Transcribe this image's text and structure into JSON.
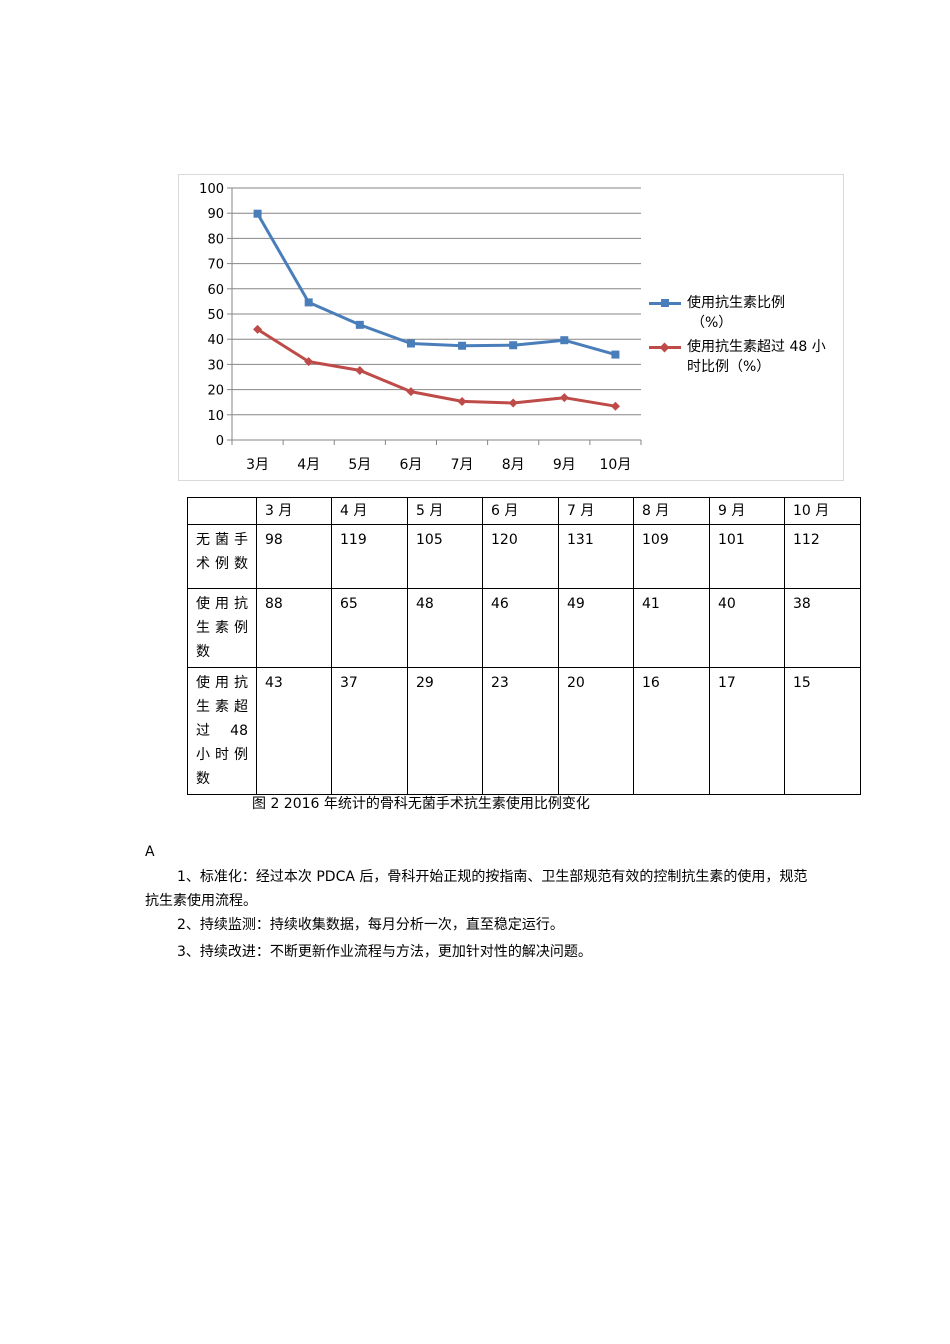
{
  "chart_data": {
    "type": "line",
    "categories": [
      "3月",
      "4月",
      "5月",
      "6月",
      "7月",
      "8月",
      "9月",
      "10月"
    ],
    "ylim": [
      0,
      100
    ],
    "yticks": [
      "0",
      "10",
      "20",
      "30",
      "40",
      "50",
      "60",
      "70",
      "80",
      "90",
      "100"
    ],
    "grid": true,
    "legend_position": "right",
    "series": [
      {
        "name": "使用抗生素比例（%）",
        "name_lines": [
          "使用抗生素比例",
          "（%）"
        ],
        "color": "#4a7ebb",
        "marker": "square",
        "values": [
          89.8,
          54.6,
          45.7,
          38.3,
          37.4,
          37.6,
          39.6,
          33.9
        ]
      },
      {
        "name": "使用抗生素超过 48 小时比例（%）",
        "name_lines": [
          "使用抗生素超过 48 小",
          "时比例（%）"
        ],
        "color": "#be4b48",
        "marker": "diamond",
        "values": [
          43.9,
          31.1,
          27.6,
          19.2,
          15.3,
          14.7,
          16.8,
          13.4
        ]
      }
    ]
  },
  "table": {
    "headers": [
      "",
      "3 月",
      "4 月",
      "5 月",
      "6 月",
      "7 月",
      "8 月",
      "9 月",
      "10 月"
    ],
    "rows": [
      {
        "label_lines": [
          "无菌手",
          "术例数"
        ],
        "values": [
          "98",
          "119",
          "105",
          "120",
          "131",
          "109",
          "101",
          "112"
        ]
      },
      {
        "label_lines": [
          "使用抗",
          "生素例",
          "数"
        ],
        "values": [
          "88",
          "65",
          "48",
          "46",
          "49",
          "41",
          "40",
          "38"
        ]
      },
      {
        "label_lines": [
          "使用抗",
          "生素超",
          "过 48",
          "小时例",
          "数"
        ],
        "values": [
          "43",
          "37",
          "29",
          "23",
          "20",
          "16",
          "17",
          "15"
        ]
      }
    ]
  },
  "caption": "图 2  2016 年统计的骨科无菌手术抗生素使用比例变化",
  "section_letter": "A",
  "paragraphs": [
    "1、标准化：经过本次 PDCA 后，骨科开始正规的按指南、卫生部规范有效的控制抗生素的使用，规范抗生素使用流程。",
    "2、持续监测：持续收集数据，每月分析一次，直至稳定运行。",
    "3、持续改进：不断更新作业流程与方法，更加针对性的解决问题。"
  ]
}
